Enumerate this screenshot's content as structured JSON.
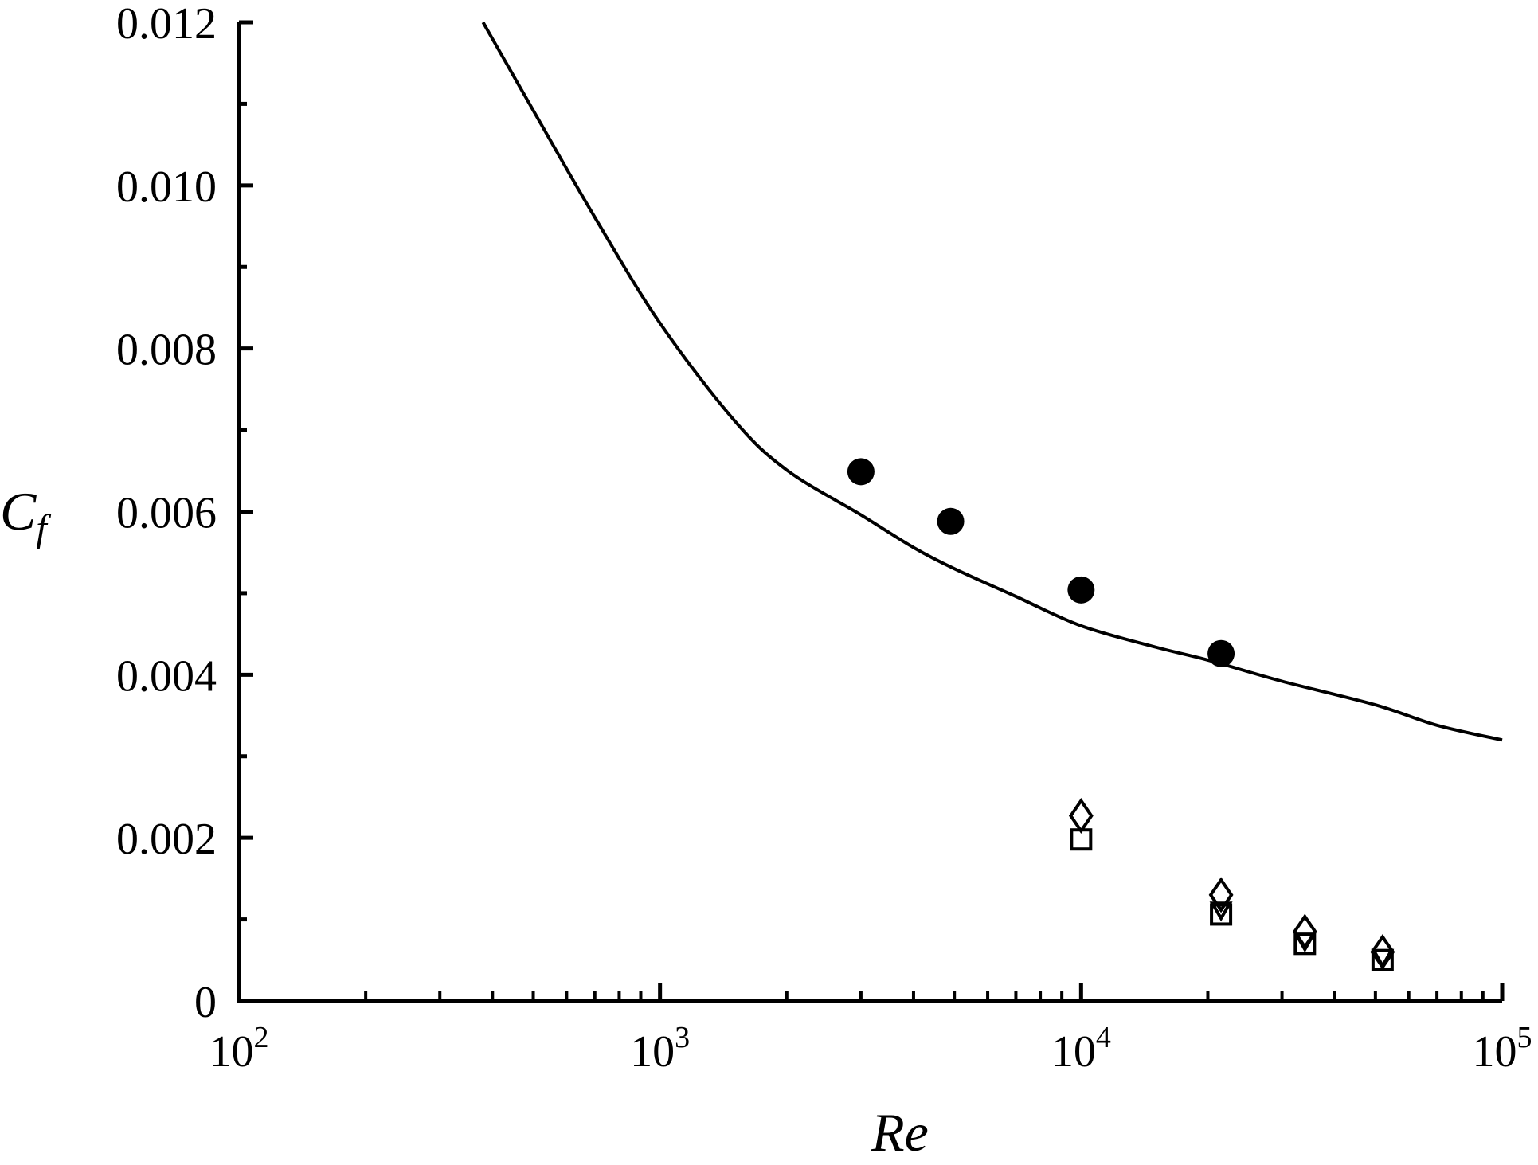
{
  "chart_data": {
    "type": "scatter",
    "title": "",
    "xlabel": "Re",
    "ylabel": "C",
    "ylabel_sub": "f",
    "xscale": "log",
    "xlim": [
      100,
      100000
    ],
    "ylim": [
      0,
      0.012
    ],
    "grid": false,
    "legend": "none",
    "x_ticks": [
      {
        "base": "10",
        "exp": "2",
        "value": 100
      },
      {
        "base": "10",
        "exp": "3",
        "value": 1000
      },
      {
        "base": "10",
        "exp": "4",
        "value": 10000
      },
      {
        "base": "10",
        "exp": "5",
        "value": 100000
      }
    ],
    "y_ticks": [
      {
        "label": "0",
        "value": 0
      },
      {
        "label": "0.002",
        "value": 0.002
      },
      {
        "label": "0.004",
        "value": 0.004
      },
      {
        "label": "0.006",
        "value": 0.006
      },
      {
        "label": "0.008",
        "value": 0.008
      },
      {
        "label": "0.010",
        "value": 0.01
      },
      {
        "label": "0.012",
        "value": 0.012
      }
    ],
    "curve": {
      "style": "solid-line",
      "x": [
        380,
        500,
        700,
        1000,
        1500,
        2000,
        3000,
        4000,
        5000,
        7000,
        10000,
        15000,
        20000,
        30000,
        50000,
        70000,
        100000
      ],
      "y": [
        0.012,
        0.01092,
        0.00961,
        0.00831,
        0.00712,
        0.00651,
        0.00596,
        0.00556,
        0.0053,
        0.00496,
        0.0046,
        0.00434,
        0.00418,
        0.00392,
        0.00363,
        0.00338,
        0.0032
      ]
    },
    "series": [
      {
        "marker": "filled-circle",
        "x": [
          3000,
          4900,
          10000,
          21500
        ],
        "y": [
          0.00649,
          0.00588,
          0.00504,
          0.00426
        ]
      },
      {
        "marker": "open-diamond",
        "x": [
          10000,
          21500,
          34000,
          52000
        ],
        "y": [
          0.00227,
          0.0013,
          0.00085,
          0.0006
        ]
      },
      {
        "marker": "open-square",
        "x": [
          10000,
          21500,
          34000,
          52000
        ],
        "y": [
          0.00198,
          0.00106,
          0.0007,
          0.0005
        ]
      },
      {
        "marker": "open-triangle-down",
        "x": [
          21500,
          34000,
          52000
        ],
        "y": [
          0.00112,
          0.00074,
          0.00054
        ]
      }
    ]
  }
}
